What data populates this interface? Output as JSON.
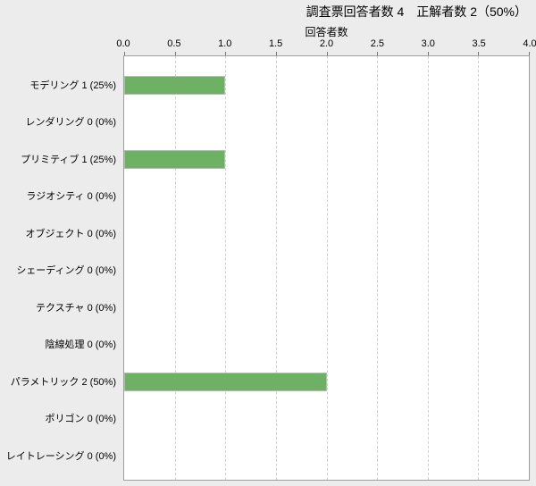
{
  "header": {
    "title": "調査票回答者数 4　正解者数 2（50%）"
  },
  "chart_data": {
    "type": "bar",
    "orientation": "horizontal",
    "title": "調査票回答者数 4　正解者数 2（50%）",
    "xlabel": "回答者数",
    "ylabel": "",
    "xlim": [
      0,
      4
    ],
    "xtick_labels": [
      "0.0",
      "0.5",
      "1.0",
      "1.5",
      "2.0",
      "2.5",
      "3.0",
      "3.5",
      "4.0"
    ],
    "grid": "vertical-dashed",
    "legend": "none",
    "categories": [
      "モデリング 1 (25%)",
      "レンダリング 0 (0%)",
      "プリミティブ 1 (25%)",
      "ラジオシティ 0 (0%)",
      "オブジェクト 0 (0%)",
      "シェーディング 0 (0%)",
      "テクスチャ 0 (0%)",
      "陰線処理 0 (0%)",
      "パラメトリック 2 (50%)",
      "ポリゴン 0 (0%)",
      "レイトレーシング 0 (0%)"
    ],
    "values": [
      1,
      0,
      1,
      0,
      0,
      0,
      0,
      0,
      2,
      0,
      0
    ],
    "colors": {
      "bar_fill": "#6EB064",
      "bar_border": "#BBBBBB",
      "plot_background": "#FFFFFF",
      "page_background": "#ECECEC",
      "plot_border": "#9E9E9E",
      "gridline": "#D0D0D0",
      "tick": "#777777",
      "text": "#000000"
    }
  }
}
